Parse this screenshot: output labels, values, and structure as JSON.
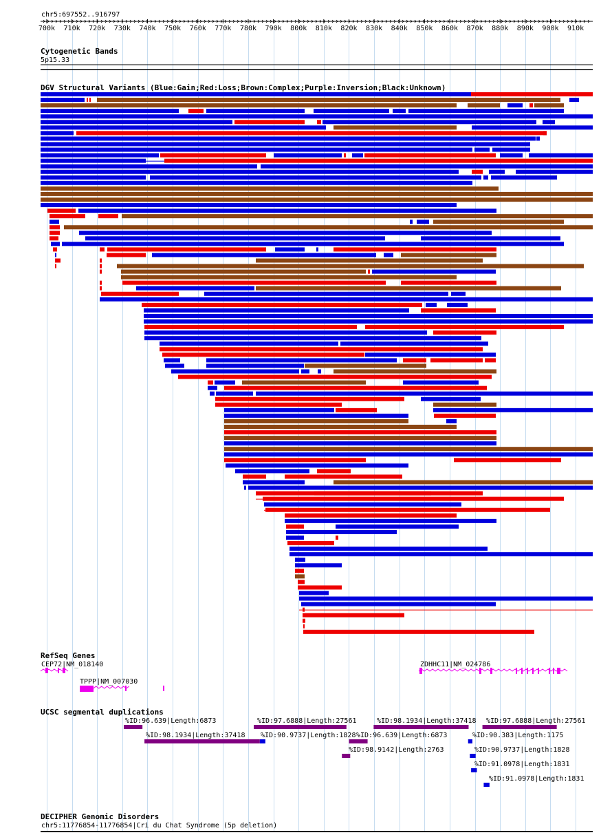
{
  "region_label": "chr5:697552..916797",
  "ruler": {
    "start": 697552,
    "end": 916797,
    "ticks": [
      "700k",
      "710k",
      "720k",
      "730k",
      "740k",
      "750k",
      "760k",
      "770k",
      "780k",
      "790k",
      "800k",
      "810k",
      "820k",
      "830k",
      "840k",
      "850k",
      "860k",
      "870k",
      "880k",
      "890k",
      "900k",
      "910k"
    ],
    "tick_values": [
      700000,
      710000,
      720000,
      730000,
      740000,
      750000,
      760000,
      770000,
      780000,
      790000,
      800000,
      810000,
      820000,
      830000,
      840000,
      850000,
      860000,
      870000,
      880000,
      890000,
      900000,
      910000
    ]
  },
  "tracks": {
    "cytoband": {
      "title": "Cytogenetic Bands",
      "band": "5p15.33"
    },
    "dgv": {
      "title": "DGV Structural Variants (Blue:Gain;Red:Loss;Brown:Complex;Purple:Inversion;Black:Unknown)",
      "colors": {
        "gain": "#0000dd",
        "loss": "#ee0000",
        "complex": "#8b4513",
        "inversion": "#800080",
        "unknown": "#000000"
      }
    },
    "refseq": {
      "title": "RefSeq Genes",
      "color": "#ee00ee",
      "genes": [
        {
          "label": "CEP72|NM_018140",
          "start": 697552,
          "end": 708700
        },
        {
          "label": "TPPP|NM_007030",
          "start": 712500,
          "end": 733100
        },
        {
          "label": "ZDHHC11|NM_024786",
          "start": 846100,
          "end": 907600
        }
      ]
    },
    "segdup": {
      "title": "UCSC segmental duplications",
      "items": [
        {
          "label": "%ID:96.639|Length:6873",
          "start": 730600,
          "end": 738000,
          "color": "#800080"
        },
        {
          "label": "%ID:98.1934|Length:37418",
          "start": 738800,
          "end": 784600,
          "color": "#800080"
        },
        {
          "label": "%ID:97.6888|Length:27561",
          "start": 782200,
          "end": 819000,
          "color": "#800080"
        },
        {
          "label": "%ID:90.9737|Length:1828",
          "start": 784600,
          "end": 786800,
          "color": "#0000dd"
        },
        {
          "label": "%ID:96.639|Length:6873",
          "start": 820000,
          "end": 827400,
          "color": "#800080"
        },
        {
          "label": "%ID:98.9142|Length:2763",
          "start": 817200,
          "end": 820500,
          "color": "#800080"
        },
        {
          "label": "%ID:98.1934|Length:37418",
          "start": 829800,
          "end": 867500,
          "color": "#800080"
        },
        {
          "label": "%ID:90.383|Length:1175",
          "start": 867300,
          "end": 869000,
          "color": "#0000dd"
        },
        {
          "label": "%ID:90.9737|Length:1828",
          "start": 868000,
          "end": 870300,
          "color": "#0000dd"
        },
        {
          "label": "%ID:91.0978|Length:1831",
          "start": 868500,
          "end": 870800,
          "color": "#0000dd"
        },
        {
          "label": "%ID:91.0978|Length:1831",
          "start": 873500,
          "end": 875800,
          "color": "#0000dd"
        },
        {
          "label": "%ID:97.6888|Length:27561",
          "start": 873000,
          "end": 902500,
          "color": "#800080"
        }
      ]
    },
    "decipher": {
      "title": "DECIPHER Genomic Disorders",
      "item": "chr5:11776854-11776854|Cri du Chat Syndrome (5p deletion)"
    }
  }
}
